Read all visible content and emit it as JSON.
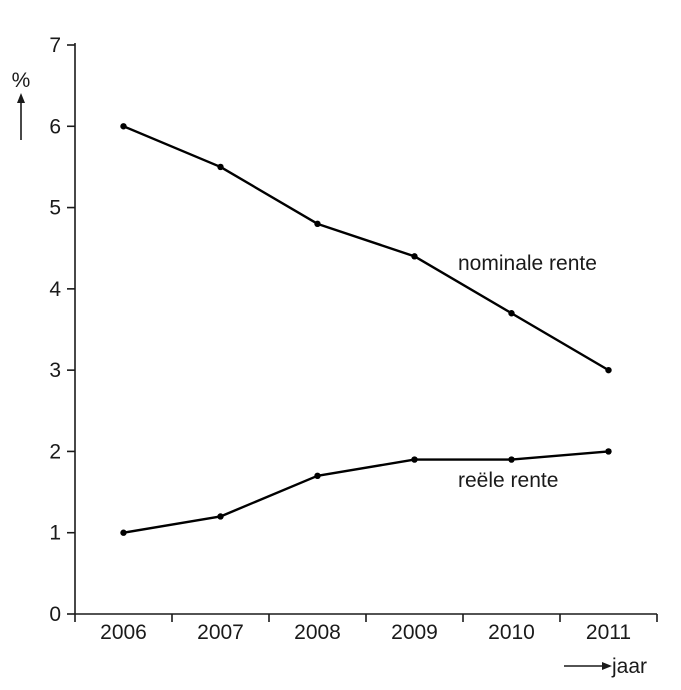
{
  "chart_data": {
    "type": "line",
    "categories": [
      "2006",
      "2007",
      "2008",
      "2009",
      "2010",
      "2011"
    ],
    "yticks": [
      "0",
      "1",
      "2",
      "3",
      "4",
      "5",
      "6",
      "7"
    ],
    "ylim": [
      0,
      7
    ],
    "ylabel": "%",
    "xlabel": "jaar",
    "grid": false,
    "series": [
      {
        "name": "nominale rente",
        "values": [
          6.0,
          5.5,
          4.8,
          4.4,
          3.7,
          3.0
        ]
      },
      {
        "name": "reële rente",
        "values": [
          1.0,
          1.2,
          1.7,
          1.9,
          1.9,
          2.0
        ]
      }
    ]
  }
}
